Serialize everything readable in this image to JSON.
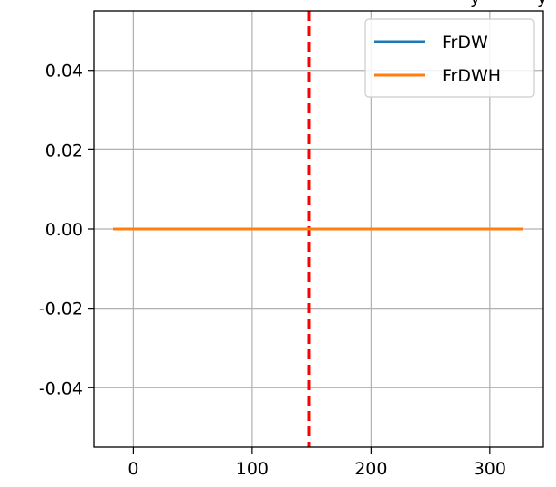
{
  "chart_data": {
    "type": "line",
    "title": "",
    "xlabel": "",
    "ylabel": "",
    "xlim": [
      -33,
      345
    ],
    "ylim": [
      -0.055,
      0.055
    ],
    "xticks": [
      0,
      100,
      200,
      300
    ],
    "xtick_labels": [
      "0",
      "100",
      "200",
      "300"
    ],
    "yticks": [
      0.04,
      0.02,
      0.0,
      -0.02,
      -0.04
    ],
    "ytick_labels": [
      "0.04",
      "0.02",
      "0.00",
      "-0.02",
      "-0.04"
    ],
    "grid": true,
    "legend_position": "top-right",
    "series": [
      {
        "name": "FrDW",
        "color": "#1f77b4",
        "x": [
          -17,
          328
        ],
        "y": [
          0.0,
          0.0
        ]
      },
      {
        "name": "FrDWH",
        "color": "#ff7f0e",
        "x": [
          -17,
          328
        ],
        "y": [
          0.0,
          0.0
        ]
      }
    ],
    "reference_lines": [
      {
        "orientation": "vertical",
        "x": 148,
        "color": "#ff0000",
        "style": "dashed"
      }
    ],
    "clipped_title_fragment": "y"
  }
}
